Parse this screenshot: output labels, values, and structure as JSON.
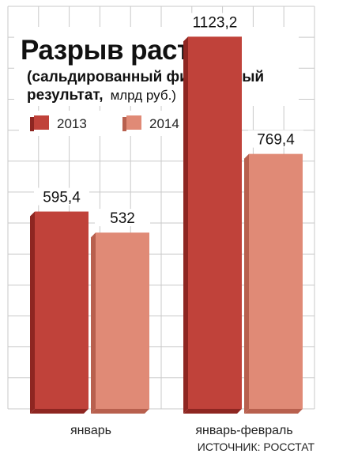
{
  "chart_data": {
    "type": "bar",
    "title": "Разрыв растет",
    "subtitle": "(сальдированный финансовый",
    "subtitle_line2": "результат,",
    "unit": "млрд руб.)",
    "categories": [
      "январь",
      "январь-февраль"
    ],
    "series": [
      {
        "name": "2013",
        "values": [
          595.4,
          1123.2
        ],
        "labels": [
          "595,4",
          "1123,2"
        ],
        "color": "#c0423a",
        "shade": "#8e2621"
      },
      {
        "name": "2014",
        "values": [
          532,
          769.4
        ],
        "labels": [
          "532",
          "769,4"
        ],
        "color": "#e08a76",
        "shade": "#b8604e"
      }
    ],
    "ylim": [
      0,
      1210
    ],
    "grid": true,
    "legend_position": "top-left",
    "source": "ИСТОЧНИК: РОССТАТ"
  }
}
